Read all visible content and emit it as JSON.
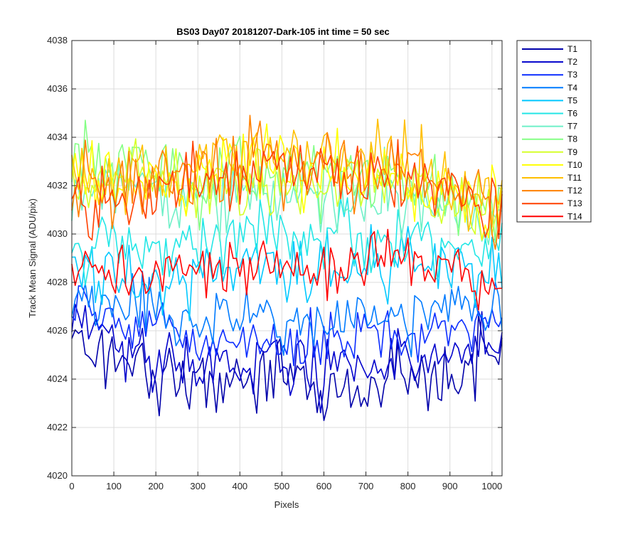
{
  "chart_data": {
    "type": "line",
    "title": "BS03 Day07 20181207-Dark-105 int time = 50 sec",
    "xlabel": "Pixels",
    "ylabel": "Track Mean Signal (ADU/pix)",
    "xlim": [
      0,
      1024
    ],
    "ylim": [
      4020,
      4038
    ],
    "xticks": [
      0,
      100,
      200,
      300,
      400,
      500,
      600,
      700,
      800,
      900,
      1000
    ],
    "yticks": [
      4020,
      4022,
      4024,
      4026,
      4028,
      4030,
      4032,
      4034,
      4036,
      4038
    ],
    "grid": true,
    "legend_position": "outside-top-right",
    "x_range_points": {
      "start": 0,
      "end": 1024,
      "step": 8
    },
    "series": [
      {
        "name": "T1",
        "color": "#0000aa",
        "base_profile": [
          [
            0,
            4025.6
          ],
          [
            150,
            4024.2
          ],
          [
            300,
            4023.6
          ],
          [
            450,
            4024.0
          ],
          [
            600,
            4023.6
          ],
          [
            750,
            4024.0
          ],
          [
            900,
            4024.3
          ],
          [
            1024,
            4024.9
          ]
        ],
        "noise": 1.3
      },
      {
        "name": "T2",
        "color": "#0000cc",
        "base_profile": [
          [
            0,
            4026.4
          ],
          [
            150,
            4025.0
          ],
          [
            300,
            4024.4
          ],
          [
            450,
            4024.6
          ],
          [
            600,
            4024.4
          ],
          [
            750,
            4024.8
          ],
          [
            900,
            4025.0
          ],
          [
            1024,
            4025.5
          ]
        ],
        "noise": 1.2
      },
      {
        "name": "T3",
        "color": "#0a2cff",
        "base_profile": [
          [
            0,
            4027.0
          ],
          [
            150,
            4026.0
          ],
          [
            300,
            4025.4
          ],
          [
            450,
            4025.7
          ],
          [
            600,
            4025.5
          ],
          [
            750,
            4025.8
          ],
          [
            900,
            4026.0
          ],
          [
            1024,
            4026.4
          ]
        ],
        "noise": 1.1
      },
      {
        "name": "T4",
        "color": "#007bff",
        "base_profile": [
          [
            0,
            4027.6
          ],
          [
            150,
            4026.8
          ],
          [
            300,
            4026.2
          ],
          [
            450,
            4026.6
          ],
          [
            600,
            4026.4
          ],
          [
            750,
            4026.6
          ],
          [
            900,
            4026.8
          ],
          [
            1024,
            4027.2
          ]
        ],
        "noise": 1.1
      },
      {
        "name": "T5",
        "color": "#00c8ff",
        "base_profile": [
          [
            0,
            4028.6
          ],
          [
            150,
            4028.0
          ],
          [
            300,
            4028.4
          ],
          [
            450,
            4028.8
          ],
          [
            600,
            4028.6
          ],
          [
            750,
            4028.8
          ],
          [
            900,
            4028.4
          ],
          [
            1024,
            4028.0
          ]
        ],
        "noise": 1.3
      },
      {
        "name": "T6",
        "color": "#22e6e6",
        "base_profile": [
          [
            0,
            4029.6
          ],
          [
            150,
            4029.2
          ],
          [
            300,
            4029.6
          ],
          [
            450,
            4030.0
          ],
          [
            600,
            4029.8
          ],
          [
            750,
            4030.0
          ],
          [
            900,
            4029.6
          ],
          [
            1024,
            4029.2
          ]
        ],
        "noise": 1.3
      },
      {
        "name": "T7",
        "color": "#6ef0c8",
        "base_profile": [
          [
            0,
            4031.6
          ],
          [
            150,
            4032.0
          ],
          [
            300,
            4031.6
          ],
          [
            450,
            4031.8
          ],
          [
            600,
            4031.6
          ],
          [
            750,
            4031.6
          ],
          [
            900,
            4031.0
          ],
          [
            1024,
            4030.4
          ]
        ],
        "noise": 1.4
      },
      {
        "name": "T8",
        "color": "#84ff84",
        "base_profile": [
          [
            0,
            4032.6
          ],
          [
            150,
            4033.2
          ],
          [
            300,
            4032.4
          ],
          [
            450,
            4032.6
          ],
          [
            600,
            4032.4
          ],
          [
            750,
            4032.4
          ],
          [
            900,
            4031.8
          ],
          [
            1024,
            4031.0
          ]
        ],
        "noise": 1.4
      },
      {
        "name": "T9",
        "color": "#d6ff2a",
        "base_profile": [
          [
            0,
            4032.2
          ],
          [
            150,
            4032.4
          ],
          [
            300,
            4031.8
          ],
          [
            450,
            4032.2
          ],
          [
            600,
            4032.0
          ],
          [
            750,
            4032.2
          ],
          [
            900,
            4031.4
          ],
          [
            1024,
            4030.6
          ]
        ],
        "noise": 1.4
      },
      {
        "name": "T10",
        "color": "#ffff00",
        "base_profile": [
          [
            0,
            4032.4
          ],
          [
            150,
            4032.2
          ],
          [
            300,
            4032.2
          ],
          [
            450,
            4032.8
          ],
          [
            600,
            4032.6
          ],
          [
            750,
            4032.6
          ],
          [
            900,
            4031.8
          ],
          [
            1024,
            4031.0
          ]
        ],
        "noise": 1.4
      },
      {
        "name": "T11",
        "color": "#ffbf00",
        "base_profile": [
          [
            0,
            4032.6
          ],
          [
            150,
            4032.4
          ],
          [
            300,
            4032.8
          ],
          [
            450,
            4033.2
          ],
          [
            600,
            4033.0
          ],
          [
            750,
            4033.0
          ],
          [
            900,
            4032.2
          ],
          [
            1024,
            4031.2
          ]
        ],
        "noise": 1.4
      },
      {
        "name": "T12",
        "color": "#ff8000",
        "base_profile": [
          [
            0,
            4032.2
          ],
          [
            150,
            4032.0
          ],
          [
            300,
            4032.6
          ],
          [
            450,
            4033.0
          ],
          [
            600,
            4032.8
          ],
          [
            750,
            4032.8
          ],
          [
            900,
            4032.0
          ],
          [
            1024,
            4031.0
          ]
        ],
        "noise": 1.5
      },
      {
        "name": "T13",
        "color": "#ff4000",
        "base_profile": [
          [
            0,
            4031.6
          ],
          [
            150,
            4031.4
          ],
          [
            300,
            4032.4
          ],
          [
            450,
            4032.8
          ],
          [
            600,
            4032.6
          ],
          [
            750,
            4032.6
          ],
          [
            900,
            4031.8
          ],
          [
            1024,
            4030.8
          ]
        ],
        "noise": 1.4
      },
      {
        "name": "T14",
        "color": "#ff0000",
        "base_profile": [
          [
            0,
            4028.6
          ],
          [
            150,
            4028.2
          ],
          [
            300,
            4028.4
          ],
          [
            450,
            4028.8
          ],
          [
            600,
            4028.6
          ],
          [
            750,
            4028.8
          ],
          [
            900,
            4028.2
          ],
          [
            1024,
            4027.6
          ]
        ],
        "noise": 1.1
      }
    ]
  }
}
